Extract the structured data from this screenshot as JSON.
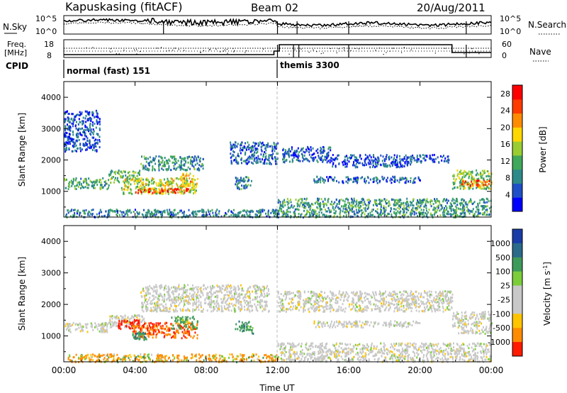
{
  "header": {
    "station": "Kapuskasing (fitACF)",
    "beam": "Beam 02",
    "date": "20/Aug/2011"
  },
  "noise_panel": {
    "left_label": "N.Sky",
    "right_label": "N.Search",
    "left_ticks": [
      "10^5",
      "10^0"
    ],
    "right_ticks": [
      "10^5",
      "10^0"
    ]
  },
  "freq_panel": {
    "left_label_1": "Freq.",
    "left_label_2": "[MHz]",
    "left_ticks": [
      "18",
      "8"
    ],
    "right_label": "Nave",
    "right_ticks": [
      "60",
      "0"
    ]
  },
  "cpid": {
    "label": "CPID",
    "modes": [
      {
        "name": "normal (fast) 151",
        "start_hour": 0
      },
      {
        "name": "themis 3300",
        "start_hour": 12.0
      }
    ]
  },
  "colors": {
    "power_scale": [
      "#0000ff",
      "#1f4fc8",
      "#2e8a8a",
      "#3fa85a",
      "#9acd32",
      "#ffd700",
      "#ff8c00",
      "#ff3b00",
      "#ff0000"
    ],
    "velocity_scale": [
      "#1a3ca8",
      "#2a6a8a",
      "#3e9a5a",
      "#7ccd3a",
      "#c8c8c8",
      "#c8c8c8",
      "#ff9900",
      "#ff6a00",
      "#ff0000"
    ]
  },
  "chart_data": [
    {
      "type": "heatmap",
      "name": "power",
      "ylabel": "Slant Range [km]",
      "xlabel": "",
      "x_ticks": [
        "00:00",
        "04:00",
        "08:00",
        "12:00",
        "16:00",
        "20:00",
        "00:00"
      ],
      "xlim_hours": [
        0,
        24
      ],
      "ylim": [
        180,
        4500
      ],
      "y_ticks": [
        1000,
        2000,
        3000,
        4000
      ],
      "colorbar": {
        "label": "Power [dB]",
        "ticks": [
          "28",
          "24",
          "20",
          "16",
          "12",
          "8",
          "4"
        ],
        "range": [
          0,
          30
        ]
      },
      "regions": [
        {
          "t0": 0.0,
          "t1": 2.5,
          "r0": 1100,
          "r1": 1450,
          "v": 11
        },
        {
          "t0": 2.5,
          "t1": 4.3,
          "r0": 1300,
          "r1": 1700,
          "v": 12
        },
        {
          "t0": 4.3,
          "t1": 7.8,
          "r0": 1700,
          "r1": 2150,
          "v": 9
        },
        {
          "t0": 3.2,
          "t1": 7.5,
          "r0": 950,
          "r1": 1450,
          "v": 16
        },
        {
          "t0": 4.0,
          "t1": 7.0,
          "r0": 980,
          "r1": 1120,
          "v": 27
        },
        {
          "t0": 6.5,
          "t1": 7.3,
          "r0": 1150,
          "r1": 1600,
          "v": 19
        },
        {
          "t0": 9.3,
          "t1": 12.0,
          "r0": 1900,
          "r1": 2600,
          "v": 6
        },
        {
          "t0": 9.6,
          "t1": 10.6,
          "r0": 1100,
          "r1": 1500,
          "v": 9
        },
        {
          "t0": 12.2,
          "t1": 15.0,
          "r0": 1950,
          "r1": 2450,
          "v": 6
        },
        {
          "t0": 15.0,
          "t1": 19.5,
          "r0": 1800,
          "r1": 2200,
          "v": 5
        },
        {
          "t0": 14.0,
          "t1": 20.0,
          "r0": 1300,
          "r1": 1500,
          "v": 6
        },
        {
          "t0": 19.5,
          "t1": 21.6,
          "r0": 1950,
          "r1": 2200,
          "v": 5
        },
        {
          "t0": 21.8,
          "t1": 24.0,
          "r0": 1100,
          "r1": 1700,
          "v": 14
        },
        {
          "t0": 22.3,
          "t1": 24.0,
          "r0": 1200,
          "r1": 1380,
          "v": 24
        },
        {
          "t0": 12.0,
          "t1": 24.0,
          "r0": 200,
          "r1": 800,
          "v": 10
        },
        {
          "t0": 0.0,
          "t1": 12.0,
          "r0": 200,
          "r1": 450,
          "v": 8
        },
        {
          "t0": 0.0,
          "t1": 2.0,
          "r0": 2300,
          "r1": 3600,
          "v": 5
        }
      ]
    },
    {
      "type": "heatmap",
      "name": "velocity",
      "ylabel": "Slant Range [km]",
      "xlabel": "Time UT",
      "x_ticks": [
        "00:00",
        "04:00",
        "08:00",
        "12:00",
        "16:00",
        "20:00",
        "00:00"
      ],
      "xlim_hours": [
        0,
        24
      ],
      "ylim": [
        180,
        4500
      ],
      "y_ticks": [
        1000,
        2000,
        3000,
        4000
      ],
      "colorbar": {
        "label": "Velocity [m s^-1]",
        "ticks": [
          "1000",
          "500",
          "100",
          "25",
          "-25",
          "-100",
          "-500",
          "-1000"
        ],
        "range": [
          -1000,
          1000
        ]
      },
      "regions": [
        {
          "t0": 0.0,
          "t1": 2.5,
          "r0": 1150,
          "r1": 1450,
          "v": 0
        },
        {
          "t0": 2.5,
          "t1": 4.5,
          "r0": 1300,
          "r1": 1700,
          "v": 0
        },
        {
          "t0": 4.3,
          "t1": 11.5,
          "r0": 1800,
          "r1": 2650,
          "v": 0
        },
        {
          "t0": 3.0,
          "t1": 4.2,
          "r0": 1250,
          "r1": 1550,
          "v": -900
        },
        {
          "t0": 3.8,
          "t1": 7.5,
          "r0": 950,
          "r1": 1450,
          "v": -450
        },
        {
          "t0": 6.0,
          "t1": 7.5,
          "r0": 1250,
          "r1": 1650,
          "v": 200
        },
        {
          "t0": 3.8,
          "t1": 4.6,
          "r0": 900,
          "r1": 1150,
          "v": 300
        },
        {
          "t0": 9.6,
          "t1": 10.6,
          "r0": 1100,
          "r1": 1500,
          "v": 300
        },
        {
          "t0": 12.0,
          "t1": 21.8,
          "r0": 1800,
          "r1": 2450,
          "v": 0
        },
        {
          "t0": 14.0,
          "t1": 20.0,
          "r0": 1300,
          "r1": 1500,
          "v": 0
        },
        {
          "t0": 21.8,
          "t1": 24.0,
          "r0": 1100,
          "r1": 1800,
          "v": 0
        },
        {
          "t0": 12.0,
          "t1": 24.0,
          "r0": 200,
          "r1": 800,
          "v": 0
        },
        {
          "t0": 0.0,
          "t1": 12.0,
          "r0": 200,
          "r1": 450,
          "v": -150
        }
      ]
    }
  ]
}
